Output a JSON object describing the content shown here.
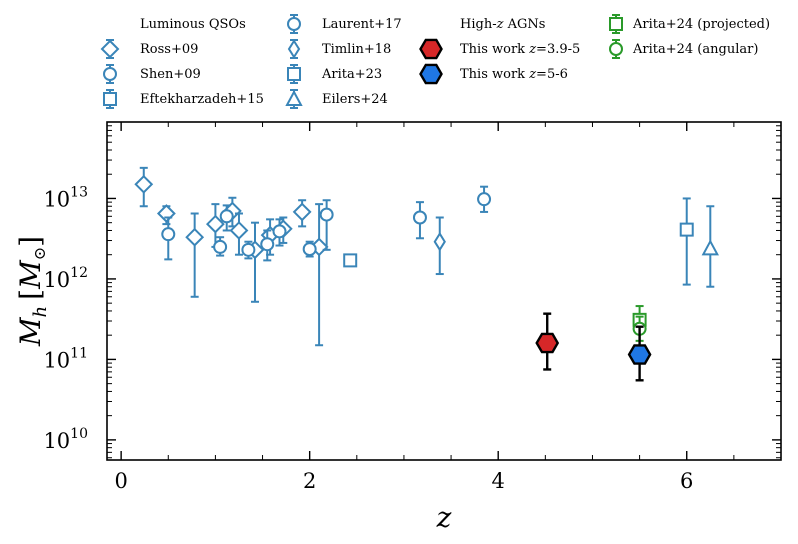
{
  "chart_data": {
    "type": "scatter",
    "xlabel": "z",
    "ylabel": "M_h [M_⊙]",
    "ylabel_main": "M",
    "ylabel_sub": "h",
    "ylabel_unit": "[M",
    "ylabel_sun": "⊙",
    "ylabel_close": "]",
    "xlim": [
      -0.15,
      7.0
    ],
    "ylim_log10": [
      9.75,
      13.95
    ],
    "xticks": [
      0,
      2,
      4,
      6
    ],
    "xtick_labels": [
      "0",
      "2",
      "4",
      "6"
    ],
    "yticks_log10": [
      10,
      11,
      12,
      13
    ],
    "ytick_base": "10",
    "ytick_exponents": [
      "10",
      "11",
      "12",
      "13"
    ],
    "colors": {
      "luminous": "#3a85b8",
      "this_work_z39": "#d62728",
      "this_work_z56": "#1f77e4",
      "arita24": "#2a9a2a"
    },
    "legend": {
      "group_luminous": "Luminous QSOs",
      "group_highz_prefix": "High-",
      "group_highz_z": "z",
      "group_highz_suffix": " AGNs",
      "ross09": "Ross+09",
      "shen09": "Shen+09",
      "eftekharzadeh15": "Eftekharzadeh+15",
      "laurent17": "Laurent+17",
      "timlin18": "Timlin+18",
      "arita23": "Arita+23",
      "eilers24": "Eilers+24",
      "this_work_prefix": "This work ",
      "this_work_z39_range": "=3.9-5",
      "this_work_z56_range": "=5-6",
      "arita24_projected": "Arita+24 (projected)",
      "arita24_angular": "Arita+24 (angular)"
    },
    "series": [
      {
        "name": "Ross+09",
        "marker": "diamond",
        "points": [
          {
            "x": 0.24,
            "y": 15000000000000.0,
            "ylo": 8000000000000.0,
            "yhi": 24000000000000.0
          },
          {
            "x": 0.48,
            "y": 6500000000000.0,
            "ylo": 4800000000000.0,
            "yhi": 8000000000000.0
          },
          {
            "x": 0.78,
            "y": 3300000000000.0,
            "ylo": 600000000000.0,
            "yhi": 6500000000000.0
          },
          {
            "x": 1.0,
            "y": 4800000000000.0,
            "ylo": 2500000000000.0,
            "yhi": 8500000000000.0
          },
          {
            "x": 1.18,
            "y": 7000000000000.0,
            "ylo": 4500000000000.0,
            "yhi": 10200000000000.0
          },
          {
            "x": 1.25,
            "y": 4000000000000.0,
            "ylo": 2000000000000.0,
            "yhi": 6500000000000.0
          },
          {
            "x": 1.42,
            "y": 2300000000000.0,
            "ylo": 520000000000.0,
            "yhi": 5000000000000.0
          },
          {
            "x": 1.58,
            "y": 3500000000000.0,
            "ylo": 2000000000000.0,
            "yhi": 5500000000000.0
          },
          {
            "x": 1.72,
            "y": 4200000000000.0,
            "ylo": 2800000000000.0,
            "yhi": 5800000000000.0
          },
          {
            "x": 1.92,
            "y": 6800000000000.0,
            "ylo": 4500000000000.0,
            "yhi": 9500000000000.0
          },
          {
            "x": 2.1,
            "y": 2500000000000.0,
            "ylo": 150000000000.0,
            "yhi": 8500000000000.0
          }
        ]
      },
      {
        "name": "Shen+09",
        "marker": "circle",
        "points": [
          {
            "x": 0.5,
            "y": 3600000000000.0,
            "ylo": 1750000000000.0,
            "yhi": 5800000000000.0
          },
          {
            "x": 1.05,
            "y": 2500000000000.0,
            "ylo": 1950000000000.0,
            "yhi": 3300000000000.0
          },
          {
            "x": 1.12,
            "y": 6000000000000.0,
            "ylo": 4000000000000.0,
            "yhi": 8200000000000.0
          },
          {
            "x": 1.35,
            "y": 2300000000000.0,
            "ylo": 1800000000000.0,
            "yhi": 2900000000000.0
          },
          {
            "x": 1.55,
            "y": 2700000000000.0,
            "ylo": 1700000000000.0,
            "yhi": 4000000000000.0
          },
          {
            "x": 1.68,
            "y": 3900000000000.0,
            "ylo": 2600000000000.0,
            "yhi": 5500000000000.0
          },
          {
            "x": 2.0,
            "y": 2350000000000.0,
            "ylo": 1900000000000.0,
            "yhi": 2900000000000.0
          },
          {
            "x": 2.18,
            "y": 6300000000000.0,
            "ylo": 2300000000000.0,
            "yhi": 9500000000000.0
          }
        ]
      },
      {
        "name": "Eftekharzadeh+15",
        "marker": "square",
        "points": [
          {
            "x": 2.43,
            "y": 1700000000000.0,
            "ylo": 1700000000000.0,
            "yhi": 1700000000000.0
          }
        ]
      },
      {
        "name": "Laurent+17",
        "marker": "circle",
        "points": [
          {
            "x": 3.17,
            "y": 5800000000000.0,
            "ylo": 3200000000000.0,
            "yhi": 9000000000000.0
          },
          {
            "x": 3.85,
            "y": 9800000000000.0,
            "ylo": 6800000000000.0,
            "yhi": 14000000000000.0
          }
        ]
      },
      {
        "name": "Timlin+18",
        "marker": "thin-diamond",
        "points": [
          {
            "x": 3.38,
            "y": 2900000000000.0,
            "ylo": 1150000000000.0,
            "yhi": 5800000000000.0
          }
        ]
      },
      {
        "name": "Arita+23",
        "marker": "square",
        "points": [
          {
            "x": 6.0,
            "y": 4100000000000.0,
            "ylo": 850000000000.0,
            "yhi": 10000000000000.0
          }
        ]
      },
      {
        "name": "Eilers+24",
        "marker": "triangle",
        "points": [
          {
            "x": 6.25,
            "y": 2400000000000.0,
            "ylo": 800000000000.0,
            "yhi": 8000000000000.0
          }
        ]
      },
      {
        "name": "Arita+24 (projected)",
        "marker": "square",
        "points": [
          {
            "x": 5.5,
            "y": 310000000000.0,
            "ylo": 240000000000.0,
            "yhi": 460000000000.0
          }
        ]
      },
      {
        "name": "Arita+24 (angular)",
        "marker": "circle",
        "points": [
          {
            "x": 5.5,
            "y": 240000000000.0,
            "ylo": 170000000000.0,
            "yhi": 340000000000.0
          }
        ]
      },
      {
        "name": "This work z=3.9-5",
        "marker": "hexagon",
        "points": [
          {
            "x": 4.52,
            "y": 160000000000.0,
            "ylo": 75000000000.0,
            "yhi": 370000000000.0
          }
        ]
      },
      {
        "name": "This work z=5-6",
        "marker": "hexagon",
        "points": [
          {
            "x": 5.5,
            "y": 115000000000.0,
            "ylo": 55000000000.0,
            "yhi": 255000000000.0
          }
        ]
      }
    ]
  }
}
